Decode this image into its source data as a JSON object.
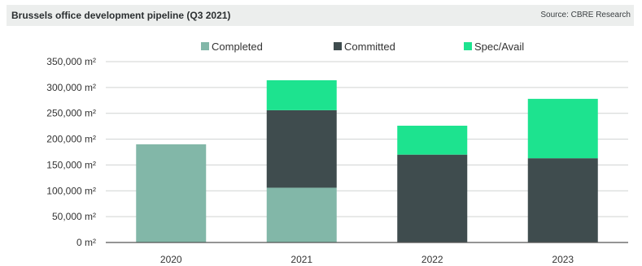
{
  "header": {
    "title": "Brussels office development pipeline (Q3 2021)",
    "source": "Source: CBRE Research"
  },
  "chart_data": {
    "type": "bar",
    "stacked": true,
    "categories": [
      "2020",
      "2021",
      "2022",
      "2023"
    ],
    "series": [
      {
        "name": "Completed",
        "color": "#82b7a8",
        "values": [
          190000,
          106000,
          0,
          0
        ]
      },
      {
        "name": "Committed",
        "color": "#3f4c4e",
        "values": [
          0,
          150000,
          170000,
          163000
        ]
      },
      {
        "name": "Spec/Avail",
        "color": "#1de38f",
        "values": [
          0,
          58000,
          56000,
          115000
        ]
      }
    ],
    "y_ticks": [
      "0 m²",
      "50,000 m²",
      "100,000 m²",
      "150,000 m²",
      "200,000 m²",
      "250,000 m²",
      "300,000 m²",
      "350,000 m²"
    ],
    "ylim": [
      0,
      350000
    ],
    "grid": true,
    "legend_position": "top"
  }
}
